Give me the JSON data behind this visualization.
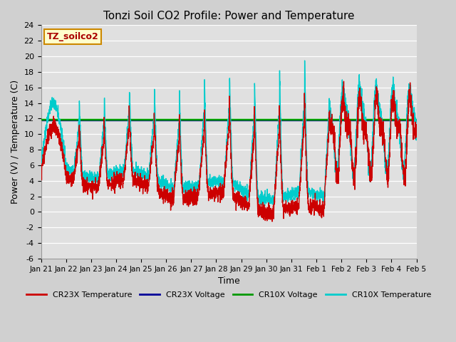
{
  "title": "Tonzi Soil CO2 Profile: Power and Temperature",
  "xlabel": "Time",
  "ylabel": "Power (V) / Temperature (C)",
  "ylim": [
    -6,
    24
  ],
  "yticks": [
    -6,
    -4,
    -2,
    0,
    2,
    4,
    6,
    8,
    10,
    12,
    14,
    16,
    18,
    20,
    22,
    24
  ],
  "fig_bg_color": "#d0d0d0",
  "plot_bg_color": "#e0e0e0",
  "grid_color": "#ffffff",
  "cr23x_temp_color": "#cc0000",
  "cr23x_volt_color": "#000099",
  "cr10x_volt_color": "#009900",
  "cr10x_temp_color": "#00cccc",
  "cr10x_volt_value": 11.85,
  "cr23x_volt_value": 11.75,
  "label_box_color": "#ffffcc",
  "label_box_edge": "#cc8800",
  "label_text": "TZ_soilco2",
  "label_text_color": "#aa0000",
  "legend_labels": [
    "CR23X Temperature",
    "CR23X Voltage",
    "CR10X Voltage",
    "CR10X Temperature"
  ],
  "tick_labels": [
    "Jan 21",
    "Jan 22",
    "Jan 23",
    "Jan 24",
    "Jan 25",
    "Jan 26",
    "Jan 27",
    "Jan 28",
    "Jan 29",
    "Jan 30",
    "Jan 31",
    "Feb 1",
    "Feb 2",
    "Feb 3",
    "Feb 4",
    "Feb 5"
  ]
}
